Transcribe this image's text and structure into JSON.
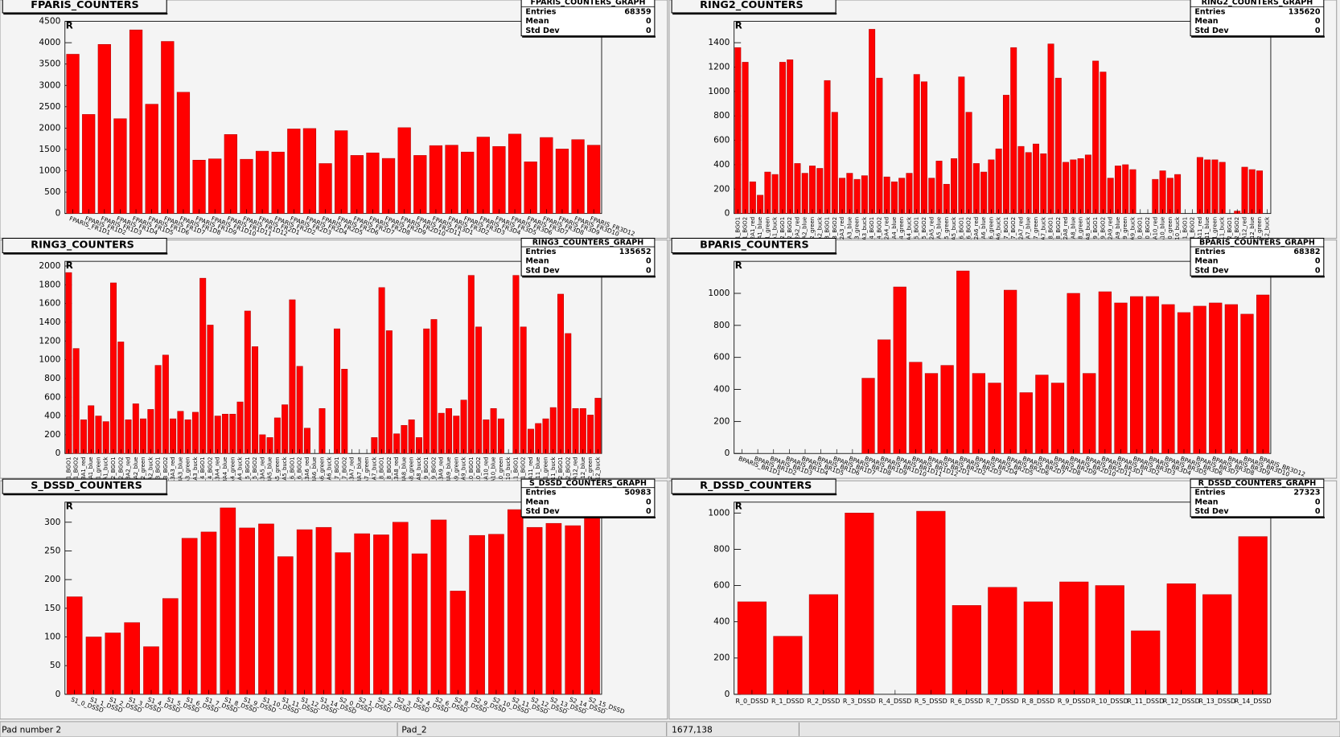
{
  "chart_data": [
    {
      "type": "bar",
      "title": "FPARIS_COUNTERS",
      "corner_mark": "R",
      "color": "#ff0000",
      "label_option": "d",
      "stats": {
        "name": "FPARIS_COUNTERS_GRAPH",
        "rows": [
          {
            "label": "Entries",
            "value": 68359
          },
          {
            "label": "Mean",
            "value": 0
          },
          {
            "label": "Std Dev",
            "value": 0
          }
        ]
      },
      "categories": [
        "FPARIS_FR1D1",
        "FPARIS_FR1D2",
        "FPARIS_FR1D3",
        "FPARIS_FR1D4",
        "FPARIS_FR1D5",
        "FPARIS_FR1D6",
        "FPARIS_FR1D7",
        "FPARIS_FR1D8",
        "FPARIS_FR1D9",
        "FPARIS_FR1D10",
        "FPARIS_FR1D11",
        "FPARIS_FR1D12",
        "FPARIS_FR2D1",
        "FPARIS_FR2D2",
        "FPARIS_FR2D3",
        "FPARIS_FR2D4",
        "FPARIS_FR2D5",
        "FPARIS_FR2D6",
        "FPARIS_FR2D7",
        "FPARIS_FR2D8",
        "FPARIS_FR2D9",
        "FPARIS_FR2D10",
        "FPARIS_FR2D11",
        "FPARIS_FR3D1",
        "FPARIS_FR3D2",
        "FPARIS_FR3D3",
        "FPARIS_FR3D4",
        "FPARIS_FR3D5",
        "FPARIS_FR3D6",
        "FPARIS_FR3D7",
        "FPARIS_FR3D8",
        "FPARIS_FR3D9",
        "FPARIS_FR3D10",
        "FPARIS_FR3D12"
      ],
      "values": [
        3730,
        2320,
        3960,
        2220,
        4300,
        2560,
        4030,
        2840,
        1250,
        1280,
        1850,
        1270,
        1460,
        1440,
        1980,
        1990,
        1170,
        1940,
        1360,
        1420,
        1290,
        2010,
        1360,
        1590,
        1600,
        1440,
        1790,
        1570,
        1860,
        1210,
        1780,
        1510,
        1730,
        1600
      ],
      "ylim": [
        0,
        4500
      ],
      "yticks": [
        0,
        500,
        1000,
        1500,
        2000,
        2500,
        3000,
        3500,
        4000,
        4500
      ]
    },
    {
      "type": "bar",
      "title": "RING2_COUNTERS",
      "corner_mark": "R",
      "color": "#ff0000",
      "label_option": "v",
      "stats": {
        "name": "RING2_COUNTERS_GRAPH",
        "rows": [
          {
            "label": "Entries",
            "value": 135620
          },
          {
            "label": "Mean",
            "value": 0
          },
          {
            "label": "Std Dev",
            "value": 0
          }
        ]
      },
      "categories": [
        "R2_1_BGO1",
        "R2_1_BGO2",
        "R2A1_red",
        "R2A1_blue",
        "R2A1_green",
        "R2A1_buck",
        "R2_2_BGO1",
        "R2_2_BGO2",
        "R2A2_red",
        "R2A2_blue",
        "R2A2_green",
        "R2A2_buck",
        "R2_3_BGO1",
        "R2_3_BGO2",
        "R2A3_red",
        "R2A3_blue",
        "R2A3_green",
        "R2A3_buck",
        "R2_4_BGO1",
        "R2_4_BGO2",
        "R2A4_red",
        "R2A4_blue",
        "R2A4_green",
        "R2A4_buck",
        "R2_5_BGO1",
        "R2_5_BGO2",
        "R2A5_red",
        "R2A5_blue",
        "R2A5_green",
        "R2A5_buck",
        "R2_6_BGO1",
        "R2_6_BGO2",
        "R2A6_red",
        "R2A6_blue",
        "R2A6_green",
        "R2A6_buck",
        "R2_7_BGO1",
        "R2_7_BGO2",
        "R2A7_red",
        "R2A7_blue",
        "R2A7_green",
        "R2A7_buck",
        "R2_8_BGO1",
        "R2_8_BGO2",
        "R2A8_red",
        "R2A8_blue",
        "R2A8_green",
        "R2A8_buck",
        "R2_9_BGO1",
        "R2_9_BGO2",
        "R2A9_red",
        "R2A9_blue",
        "R2A9_green",
        "R2A9_buck",
        "R2_10_BGO1",
        "R2_10_BGO2",
        "R2A10_red",
        "R2A10_blue",
        "R2A10_green",
        "R2A10_buck",
        "R2_11_BGO1",
        "R2_11_BGO2",
        "R2A11_red",
        "R2A11_blue",
        "R2A11_green",
        "R2A11_buck",
        "R2_12_BGO1",
        "R2_12_BGO2",
        "R2A12_red",
        "R2A12_blue",
        "R2A12_green",
        "R2A12_buck"
      ],
      "values": [
        1360,
        1240,
        260,
        150,
        340,
        320,
        1240,
        1260,
        410,
        330,
        390,
        370,
        1090,
        830,
        290,
        330,
        280,
        310,
        1510,
        1110,
        300,
        260,
        290,
        330,
        1140,
        1080,
        290,
        430,
        240,
        450,
        1120,
        830,
        410,
        340,
        440,
        530,
        970,
        1360,
        550,
        500,
        570,
        490,
        1390,
        1110,
        420,
        440,
        450,
        480,
        1250,
        1160,
        290,
        390,
        400,
        360,
        0,
        0,
        280,
        350,
        290,
        320,
        0,
        0,
        460,
        440,
        440,
        420,
        0,
        20,
        380,
        360,
        350,
        0
      ],
      "ylim": [
        0,
        1575
      ],
      "yticks": [
        0,
        200,
        400,
        600,
        800,
        1000,
        1200,
        1400
      ]
    },
    {
      "type": "bar",
      "title": "RING3_COUNTERS",
      "corner_mark": "R",
      "color": "#ff0000",
      "label_option": "v",
      "stats": {
        "name": "RING3_COUNTERS_GRAPH",
        "rows": [
          {
            "label": "Entries",
            "value": 135652
          },
          {
            "label": "Mean",
            "value": 0
          },
          {
            "label": "Std Dev",
            "value": 0
          }
        ]
      },
      "categories": [
        "R3_1_BGO1",
        "R3_1_BGO2",
        "R3A1_red",
        "R3A1_blue",
        "R3A1_green",
        "R3A1_buck",
        "R3_2_BGO1",
        "R3_2_BGO2",
        "R3A2_red",
        "R3A2_blue",
        "R3A2_green",
        "R3A2_buck",
        "R3_3_BGO1",
        "R3_3_BGO2",
        "R3A3_red",
        "R3A3_blue",
        "R3A3_green",
        "R3A3_buck",
        "R3_4_BGO1",
        "R3_4_BGO2",
        "R3A4_red",
        "R3A4_blue",
        "R3A4_green",
        "R3A4_buck",
        "R3_5_BGO1",
        "R3_5_BGO2",
        "R3A5_red",
        "R3A5_blue",
        "R3A5_green",
        "R3A5_buck",
        "R3_6_BGO1",
        "R3_6_BGO2",
        "R3A6_red",
        "R3A6_blue",
        "R3A6_green",
        "R3A6_buck",
        "R3_7_BGO1",
        "R3_7_BGO2",
        "R3A7_red",
        "R3A7_blue",
        "R3A7_green",
        "R3A7_buck",
        "R3_8_BGO1",
        "R3_8_BGO2",
        "R3A8_red",
        "R3A8_blue",
        "R3A8_green",
        "R3A8_buck",
        "R3_9_BGO1",
        "R3_9_BGO2",
        "R3A9_red",
        "R3A9_blue",
        "R3A9_green",
        "R3A9_buck",
        "R3_10_BGO1",
        "R3_10_BGO2",
        "R3A10_red",
        "R3A10_blue",
        "R3A10_green",
        "R3A10_buck",
        "R3_11_BGO1",
        "R3_11_BGO2",
        "R3A11_red",
        "R3A11_blue",
        "R3A11_green",
        "R3A11_buck",
        "R3_12_BGO1",
        "R3_12_BGO2",
        "R3A12_red",
        "R3A12_blue",
        "R3A12_green",
        "R3A12_buck"
      ],
      "values": [
        1930,
        1120,
        360,
        510,
        400,
        340,
        1820,
        1190,
        360,
        530,
        370,
        470,
        940,
        1050,
        370,
        450,
        360,
        440,
        1870,
        1370,
        400,
        420,
        420,
        550,
        1520,
        1140,
        200,
        170,
        380,
        520,
        1640,
        930,
        270,
        0,
        480,
        0,
        1330,
        900,
        0,
        0,
        0,
        170,
        1770,
        1310,
        210,
        300,
        360,
        170,
        1330,
        1430,
        430,
        480,
        400,
        570,
        1900,
        1350,
        360,
        480,
        370,
        0,
        1900,
        1350,
        260,
        320,
        370,
        490,
        1700,
        1280,
        480,
        480,
        410,
        590
      ],
      "ylim": [
        0,
        2050
      ],
      "yticks": [
        0,
        200,
        400,
        600,
        800,
        1000,
        1200,
        1400,
        1600,
        1800,
        2000
      ]
    },
    {
      "type": "bar",
      "title": "BPARIS_COUNTERS",
      "corner_mark": "R",
      "color": "#ff0000",
      "label_option": "d",
      "stats": {
        "name": "BPARIS_COUNTERS_GRAPH",
        "rows": [
          {
            "label": "Entries",
            "value": 68382
          },
          {
            "label": "Mean",
            "value": 0
          },
          {
            "label": "Std Dev",
            "value": 0
          }
        ]
      },
      "categories": [
        "BPARIS_BR1D1",
        "BPARIS_BR1D2",
        "BPARIS_BR1D3",
        "BPARIS_BR1D4",
        "BPARIS_BR1D5",
        "BPARIS_BR1D6",
        "BPARIS_BR1D7",
        "BPARIS_BR1D8",
        "BPARIS_BR1D9",
        "BPARIS_BR1D10",
        "BPARIS_BR1D11",
        "BPARIS_BR1D12",
        "BPARIS_BR2D1",
        "BPARIS_BR2D2",
        "BPARIS_BR2D3",
        "BPARIS_BR2D4",
        "BPARIS_BR2D5",
        "BPARIS_BR2D6",
        "BPARIS_BR2D7",
        "BPARIS_BR2D8",
        "BPARIS_BR2D9",
        "BPARIS_BR2D10",
        "BPARIS_BR2D11",
        "BPARIS_BR3D1",
        "BPARIS_BR3D2",
        "BPARIS_BR3D3",
        "BPARIS_BR3D4",
        "BPARIS_BR3D5",
        "BPARIS_BR3D6",
        "BPARIS_BR3D7",
        "BPARIS_BR3D8",
        "BPARIS_BR3D9",
        "BPARIS_BR3D10",
        "BPARIS_BR3D12"
      ],
      "values": [
        0,
        0,
        0,
        0,
        0,
        0,
        0,
        0,
        470,
        710,
        1040,
        570,
        500,
        550,
        1140,
        500,
        440,
        1020,
        380,
        490,
        440,
        1000,
        500,
        1010,
        940,
        980,
        980,
        930,
        880,
        920,
        940,
        930,
        870,
        990
      ],
      "ylim": [
        0,
        1200
      ],
      "yticks": [
        0,
        200,
        400,
        600,
        800,
        1000
      ]
    },
    {
      "type": "bar",
      "title": "S_DSSD_COUNTERS",
      "corner_mark": "R",
      "color": "#ff0000",
      "label_option": "d",
      "stats": {
        "name": "S_DSSD_COUNTERS_GRAPH",
        "rows": [
          {
            "label": "Entries",
            "value": 50983
          },
          {
            "label": "Mean",
            "value": 0
          },
          {
            "label": "Std Dev",
            "value": 0
          }
        ]
      },
      "categories": [
        "S1_0_DSSD",
        "S1_1_DSSD",
        "S1_2_DSSD",
        "S1_3_DSSD",
        "S1_4_DSSD",
        "S1_5_DSSD",
        "S1_6_DSSD",
        "S1_7_DSSD",
        "S1_8_DSSD",
        "S1_9_DSSD",
        "S1_10_DSSD",
        "S1_11_DSSD",
        "S1_12_DSSD",
        "S1_14_DSSD",
        "S2_0_DSSD",
        "S2_1_DSSD",
        "S2_2_DSSD",
        "S2_3_DSSD",
        "S2_4_DSSD",
        "S2_6_DSSD",
        "S2_8_DSSD",
        "S2_9_DSSD",
        "S2_10_DSSD",
        "S2_11_DSSD",
        "S2_12_DSSD",
        "S2_13_DSSD",
        "S2_14_DSSD",
        "S2_15_DSSD"
      ],
      "values": [
        170,
        100,
        107,
        125,
        83,
        167,
        272,
        283,
        325,
        290,
        297,
        240,
        287,
        291,
        247,
        280,
        278,
        300,
        245,
        304,
        180,
        277,
        279,
        322,
        291,
        298,
        294,
        320
      ],
      "ylim": [
        0,
        335
      ],
      "yticks": [
        0,
        50,
        100,
        150,
        200,
        250,
        300
      ]
    },
    {
      "type": "bar",
      "title": "R_DSSD_COUNTERS",
      "corner_mark": "R",
      "color": "#ff0000",
      "label_option": "h",
      "stats": {
        "name": "R_DSSD_COUNTERS_GRAPH",
        "rows": [
          {
            "label": "Entries",
            "value": 27323
          },
          {
            "label": "Mean",
            "value": 0
          },
          {
            "label": "Std Dev",
            "value": 0
          }
        ]
      },
      "categories": [
        "R_0_DSSD",
        "R_1_DSSD",
        "R_2_DSSD",
        "R_3_DSSD",
        "R_4_DSSD",
        "R_5_DSSD",
        "R_6_DSSD",
        "R_7_DSSD",
        "R_8_DSSD",
        "R_9_DSSD",
        "R_10_DSSD",
        "R_11_DSSD",
        "R_12_DSSD",
        "R_13_DSSD",
        "R_14_DSSD"
      ],
      "values": [
        510,
        320,
        550,
        1000,
        0,
        1010,
        490,
        590,
        510,
        620,
        600,
        350,
        610,
        550,
        870
      ],
      "ylim": [
        0,
        1060
      ],
      "yticks": [
        0,
        200,
        400,
        600,
        800,
        1000
      ]
    }
  ],
  "status_bar": [
    "Pad number 2",
    "Pad_2",
    "1677,138"
  ]
}
